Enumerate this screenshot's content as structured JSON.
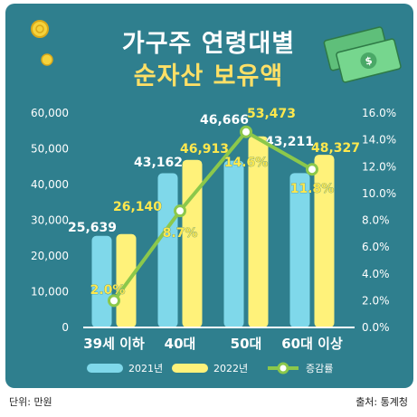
{
  "title_line1": "가구주 연령대별",
  "title_line2": "순자산 보유액",
  "unit_note": "단위: 만원",
  "source_note": "출처: 통계청",
  "colors": {
    "background": "#2f7f8e",
    "bar_2021": "#7fd8ea",
    "bar_2022": "#fff27a",
    "line": "#8cc84b",
    "label_2021": "#ffffff",
    "label_2022": "#ffe84d"
  },
  "icons": [
    "coin-icon",
    "money-bill-icon"
  ],
  "chart_data": {
    "type": "bar",
    "categories": [
      "39세 이하",
      "40대",
      "50대",
      "60대 이상"
    ],
    "series": [
      {
        "name": "2021년",
        "values": [
          25639,
          43162,
          46666,
          43211
        ],
        "labels": [
          "25,639",
          "43,162",
          "46,666",
          "43,211"
        ]
      },
      {
        "name": "2022년",
        "values": [
          26140,
          46913,
          53473,
          48327
        ],
        "labels": [
          "26,140",
          "46,913",
          "53,473",
          "48,327"
        ]
      }
    ],
    "line_series": {
      "name": "증감률",
      "values": [
        2.0,
        8.7,
        14.6,
        11.8
      ],
      "labels": [
        "2.0%",
        "8.7%",
        "14.6%",
        "11.8%"
      ]
    },
    "y_left": {
      "min": 0,
      "max": 60000,
      "ticks": [
        "0",
        "10,000",
        "20,000",
        "30,000",
        "40,000",
        "50,000",
        "60,000"
      ]
    },
    "y_right": {
      "min": 0,
      "max": 16,
      "ticks": [
        "0.0%",
        "2.0%",
        "4.0%",
        "6.0%",
        "8.0%",
        "10.0%",
        "12.0%",
        "14.0%",
        "16.0%"
      ]
    },
    "legend_position": "bottom",
    "grid": false
  }
}
